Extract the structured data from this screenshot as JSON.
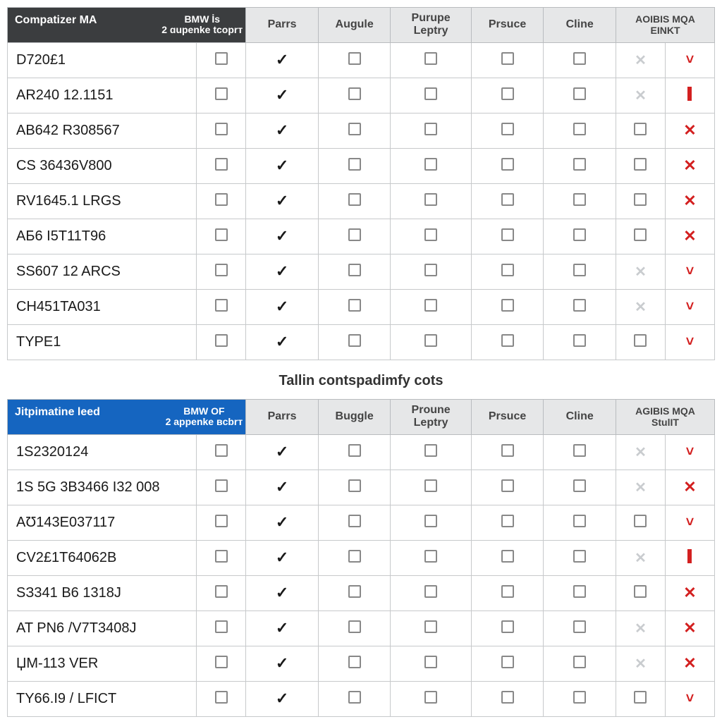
{
  "colors": {
    "header_dark": "#3b3d3f",
    "header_blue": "#1565c0",
    "header_grey": "#e6e7e8",
    "border": "#c7c9cb",
    "text": "#1a1a1a",
    "red": "#d32020",
    "faint": "#c9cccf"
  },
  "section_title": "Tallin contspadimfy cots",
  "icons": {
    "checkbox": "checkbox",
    "check": "✓",
    "x_red": "✕",
    "chevron_red": "˅",
    "bar_red": "bar",
    "x_faint": "✕"
  },
  "tables": [
    {
      "header_variant": "dark",
      "columns": {
        "main": "Compatizer MA",
        "sub_line1": "BMW İs",
        "sub_line2": "2 ɑupenke tcoprт",
        "cols": [
          "Parrs",
          "Augule",
          "Purupe Leptry",
          "Prsuce",
          "Cline"
        ],
        "end_line1": "AOIBIS MQA",
        "end_line2": "EINKT"
      },
      "rows": [
        {
          "label": "D720£1",
          "c0": "checkbox",
          "cells": [
            "check",
            "checkbox",
            "checkbox",
            "checkbox",
            "checkbox"
          ],
          "e1": "x_faint",
          "e2": "chev"
        },
        {
          "label": "AR240 12.1151",
          "c0": "checkbox",
          "cells": [
            "check",
            "checkbox",
            "checkbox",
            "checkbox",
            "checkbox"
          ],
          "e1": "x_faint",
          "e2": "bar"
        },
        {
          "label": "AB642 R308567",
          "c0": "checkbox",
          "cells": [
            "check",
            "checkbox",
            "checkbox",
            "checkbox",
            "checkbox"
          ],
          "e1": "checkbox",
          "e2": "x"
        },
        {
          "label": "CS 36436V800",
          "c0": "checkbox",
          "cells": [
            "check",
            "checkbox",
            "checkbox",
            "checkbox",
            "checkbox"
          ],
          "e1": "checkbox",
          "e2": "x"
        },
        {
          "label": "RV1645.1 LRGS",
          "c0": "checkbox",
          "cells": [
            "check",
            "checkbox",
            "checkbox",
            "checkbox",
            "checkbox"
          ],
          "e1": "checkbox",
          "e2": "x"
        },
        {
          "label": "AБ6 I5T11T96",
          "c0": "checkbox",
          "cells": [
            "check",
            "checkbox",
            "checkbox",
            "checkbox",
            "checkbox"
          ],
          "e1": "checkbox",
          "e2": "x"
        },
        {
          "label": "SS607 12 ARCS",
          "c0": "checkbox",
          "cells": [
            "check",
            "checkbox",
            "checkbox",
            "checkbox",
            "checkbox"
          ],
          "e1": "x_faint",
          "e2": "chev"
        },
        {
          "label": "CH451TA031",
          "c0": "checkbox",
          "cells": [
            "check",
            "checkbox",
            "checkbox",
            "checkbox",
            "checkbox"
          ],
          "e1": "x_faint",
          "e2": "chev"
        },
        {
          "label": "TYPE1",
          "c0": "checkbox",
          "cells": [
            "check",
            "checkbox",
            "checkbox",
            "checkbox",
            "checkbox"
          ],
          "e1": "checkbox",
          "e2": "chev"
        }
      ]
    },
    {
      "header_variant": "blue",
      "columns": {
        "main": "Jitpimatine leed",
        "sub_line1": "BMW OF",
        "sub_line2": "2 appenke вcbrт",
        "cols": [
          "Parrs",
          "Buggle",
          "Proune Leptry",
          "Prsuce",
          "Cline"
        ],
        "end_line1": "AGIBIS MQA",
        "end_line2": "StulIT"
      },
      "rows": [
        {
          "label": "1S2320124",
          "c0": "checkbox",
          "cells": [
            "check",
            "checkbox",
            "checkbox",
            "checkbox",
            "checkbox"
          ],
          "e1": "x_faint",
          "e2": "chev"
        },
        {
          "label": "1S 5G 3B3466 I32 008",
          "c0": "checkbox",
          "cells": [
            "check",
            "checkbox",
            "checkbox",
            "checkbox",
            "checkbox"
          ],
          "e1": "x_faint",
          "e2": "x"
        },
        {
          "label": "AƱ143E037117",
          "c0": "checkbox",
          "cells": [
            "check",
            "checkbox",
            "checkbox",
            "checkbox",
            "checkbox"
          ],
          "e1": "checkbox",
          "e2": "chev"
        },
        {
          "label": "CV2£1T64062B",
          "c0": "checkbox",
          "cells": [
            "check",
            "checkbox",
            "checkbox",
            "checkbox",
            "checkbox"
          ],
          "e1": "x_faint",
          "e2": "bar"
        },
        {
          "label": "SЗ341 B6 1318J",
          "c0": "checkbox",
          "cells": [
            "check",
            "checkbox",
            "checkbox",
            "checkbox",
            "checkbox"
          ],
          "e1": "checkbox",
          "e2": "x"
        },
        {
          "label": "AT PN6 /V7T3408J",
          "c0": "checkbox",
          "cells": [
            "check",
            "checkbox",
            "checkbox",
            "checkbox",
            "checkbox"
          ],
          "e1": "x_faint",
          "e2": "x"
        },
        {
          "label": "ЏM-113 VER",
          "c0": "checkbox",
          "cells": [
            "check",
            "checkbox",
            "checkbox",
            "checkbox",
            "checkbox"
          ],
          "e1": "x_faint",
          "e2": "x"
        },
        {
          "label": "TY66.I9 / LFICT",
          "c0": "checkbox",
          "cells": [
            "check",
            "checkbox",
            "checkbox",
            "checkbox",
            "checkbox"
          ],
          "e1": "checkbox",
          "e2": "chev"
        }
      ]
    }
  ]
}
